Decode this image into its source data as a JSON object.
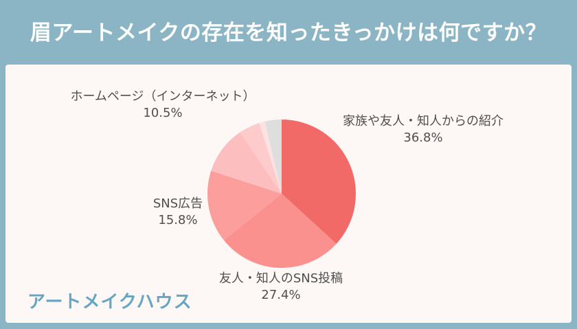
{
  "page": {
    "title": "眉アートメイクの存在を知ったきっかけは何ですか？",
    "logo_text": "アートメイクハウス",
    "background_color": "#8BB5C4",
    "card_color": "#FDF7F5",
    "title_color": "#FFFFFF",
    "label_color": "#4F4F4F",
    "logo_color": "#67A5C1"
  },
  "chart_data": {
    "type": "pie",
    "title": "眉アートメイクの存在を知ったきっかけは何ですか？",
    "direction": "clockwise",
    "start_angle": "12-o-clock",
    "legend_position": "outside-labels",
    "segments": [
      {
        "label": "家族や友人・知人からの紹介",
        "value": 36.8,
        "pct_text": "36.8%",
        "color": "#F26A68"
      },
      {
        "label": "友人・知人のSNS投稿",
        "value": 27.4,
        "pct_text": "27.4%",
        "color": "#FA918E"
      },
      {
        "label": "SNS広告",
        "value": 15.8,
        "pct_text": "15.8%",
        "color": "#FC9E9C"
      },
      {
        "label": "ホームページ（インターネット）",
        "value": 10.5,
        "pct_text": "10.5%",
        "color": "#FCBEBE"
      },
      {
        "label": "",
        "value": 4.6,
        "pct_text": "",
        "color": "#FDCBCB"
      },
      {
        "label": "",
        "value": 1.3,
        "pct_text": "",
        "color": "#FDE2E2"
      },
      {
        "label": "",
        "value": 3.6,
        "pct_text": "",
        "color": "#DEDEDE"
      }
    ]
  }
}
